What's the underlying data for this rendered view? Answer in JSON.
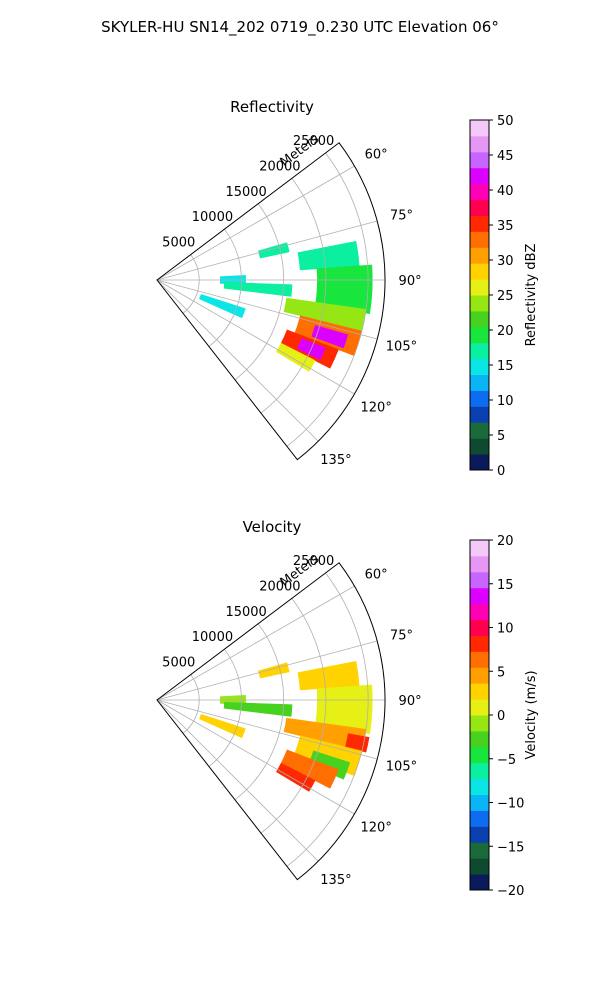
{
  "figure": {
    "suptitle": "SKYLER-HU  SN14_202  0719_0.230 UTC Elevation 06°"
  },
  "chart_data": [
    {
      "type": "heatmap",
      "projection": "polar-sector",
      "title": "Reflectivity",
      "radial_label": "Meters",
      "radial_ticks": [
        "5000",
        "10000",
        "15000",
        "20000",
        "25000"
      ],
      "radial_values": [
        5000,
        10000,
        15000,
        20000,
        25000
      ],
      "r_max": 27000,
      "azimuth_ticks": [
        "60°",
        "75°",
        "90°",
        "105°",
        "120°",
        "135°"
      ],
      "azimuth_values": [
        60,
        75,
        90,
        105,
        120,
        135
      ],
      "azimuth_range": [
        53,
        142
      ],
      "grid": true,
      "colorbar": {
        "label": "Reflectivity dBZ",
        "range": [
          0,
          50
        ],
        "ticks": [
          "0",
          "5",
          "10",
          "15",
          "20",
          "25",
          "30",
          "35",
          "40",
          "45",
          "50"
        ],
        "colors": [
          "#0a1a5a",
          "#0f4a30",
          "#1a6a3a",
          "#0a3fb0",
          "#0d6cf0",
          "#0ab4f5",
          "#0ae6e6",
          "#0af0a0",
          "#18e63c",
          "#46d21e",
          "#96e614",
          "#e6f014",
          "#ffd200",
          "#ffa000",
          "#ff6e00",
          "#ff2800",
          "#ff0050",
          "#ff00b4",
          "#dc00ff",
          "#c864ff",
          "#e696f5",
          "#f5c8fa"
        ]
      },
      "echo_regions": [
        {
          "az": [
            74,
            78
          ],
          "r": [
            12500,
            16000
          ],
          "value": 18
        },
        {
          "az": [
            79,
            86
          ],
          "r": [
            17000,
            24000
          ],
          "value": 16
        },
        {
          "az": [
            87,
            93
          ],
          "r": [
            7500,
            10500
          ],
          "value": 14
        },
        {
          "az": [
            92,
            97
          ],
          "r": [
            8000,
            16000
          ],
          "value": 17
        },
        {
          "az": [
            86,
            99
          ],
          "r": [
            19000,
            25500
          ],
          "value": 20
        },
        {
          "az": [
            108,
            114
          ],
          "r": [
            5500,
            11000
          ],
          "value": 14
        },
        {
          "az": [
            98,
            104
          ],
          "r": [
            15500,
            25000
          ],
          "value": 24
        },
        {
          "az": [
            104,
            111
          ],
          "r": [
            17500,
            25000
          ],
          "value": 33
        },
        {
          "az": [
            106,
            110
          ],
          "r": [
            19500,
            23500
          ],
          "value": 41
        },
        {
          "az": [
            111,
            117
          ],
          "r": [
            16500,
            23000
          ],
          "value": 36
        },
        {
          "az": [
            112,
            116
          ],
          "r": [
            18500,
            21500
          ],
          "value": 43
        },
        {
          "az": [
            117,
            121
          ],
          "r": [
            16500,
            21000
          ],
          "value": 27
        }
      ]
    },
    {
      "type": "heatmap",
      "projection": "polar-sector",
      "title": "Velocity",
      "radial_label": "Meters",
      "radial_ticks": [
        "5000",
        "10000",
        "15000",
        "20000",
        "25000"
      ],
      "radial_values": [
        5000,
        10000,
        15000,
        20000,
        25000
      ],
      "r_max": 27000,
      "azimuth_ticks": [
        "60°",
        "75°",
        "90°",
        "105°",
        "120°",
        "135°"
      ],
      "azimuth_values": [
        60,
        75,
        90,
        105,
        120,
        135
      ],
      "azimuth_range": [
        53,
        142
      ],
      "grid": true,
      "colorbar": {
        "label": "Velocity (m/s)",
        "range": [
          -20,
          20
        ],
        "ticks": [
          "−20",
          "−15",
          "−10",
          "−5",
          "0",
          "5",
          "10",
          "15",
          "20"
        ],
        "colors": [
          "#0a1a5a",
          "#0f4a30",
          "#1a6a3a",
          "#0a3fb0",
          "#0d6cf0",
          "#0ab4f5",
          "#0ae6e6",
          "#0af0a0",
          "#18e63c",
          "#46d21e",
          "#96e614",
          "#e6f014",
          "#ffd200",
          "#ffa000",
          "#ff6e00",
          "#ff2800",
          "#ff0050",
          "#ff00b4",
          "#dc00ff",
          "#c864ff",
          "#e696f5",
          "#f5c8fa"
        ]
      },
      "echo_regions": [
        {
          "az": [
            74,
            78
          ],
          "r": [
            12500,
            16000
          ],
          "value": 3
        },
        {
          "az": [
            79,
            86
          ],
          "r": [
            17000,
            24000
          ],
          "value": 2
        },
        {
          "az": [
            87,
            93
          ],
          "r": [
            7500,
            10500
          ],
          "value": -1
        },
        {
          "az": [
            92,
            97
          ],
          "r": [
            8000,
            16000
          ],
          "value": -2
        },
        {
          "az": [
            86,
            99
          ],
          "r": [
            19000,
            25500
          ],
          "value": 1
        },
        {
          "az": [
            108,
            114
          ],
          "r": [
            5500,
            11000
          ],
          "value": 2
        },
        {
          "az": [
            98,
            104
          ],
          "r": [
            15500,
            25000
          ],
          "value": 5
        },
        {
          "az": [
            100,
            104
          ],
          "r": [
            23000,
            25500
          ],
          "value": 9
        },
        {
          "az": [
            104,
            111
          ],
          "r": [
            17500,
            25000
          ],
          "value": 3
        },
        {
          "az": [
            108,
            113
          ],
          "r": [
            19500,
            24000
          ],
          "value": -3
        },
        {
          "az": [
            111,
            117
          ],
          "r": [
            16500,
            23000
          ],
          "value": 6
        },
        {
          "az": [
            117,
            121
          ],
          "r": [
            16500,
            21000
          ],
          "value": 8
        }
      ]
    }
  ]
}
